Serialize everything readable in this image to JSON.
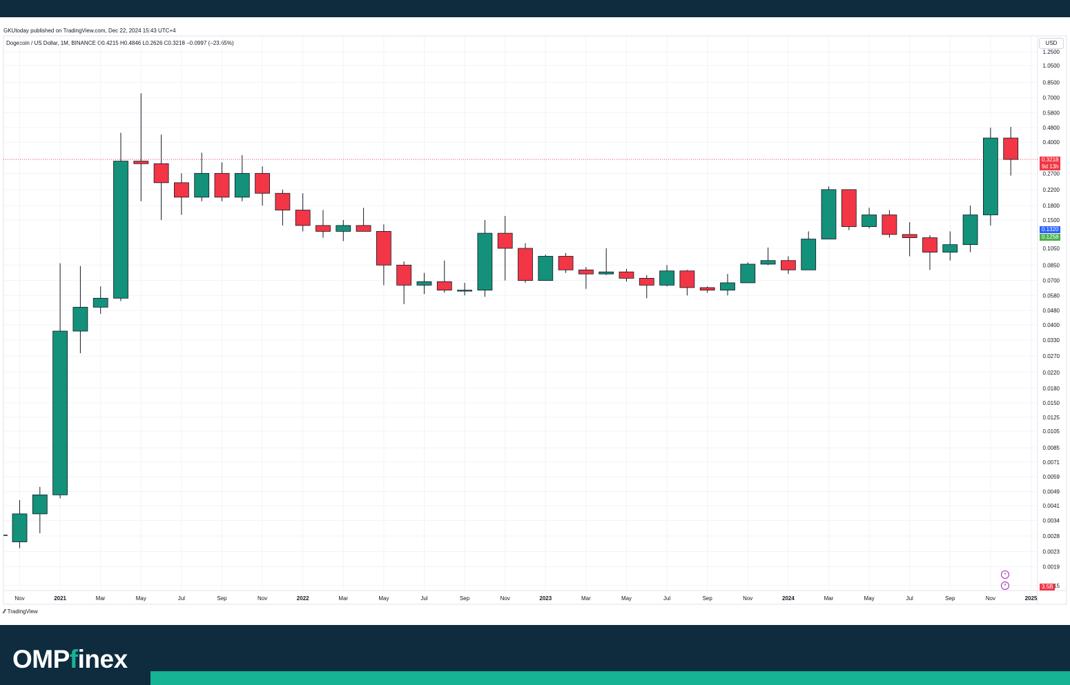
{
  "header": {
    "published": "GKUtoday published on TradingView.com, Dec 22, 2024 15:43 UTC+4",
    "symbol": "Dogecoin / US Dollar, 1M, BINANCE",
    "open": "O0.4215",
    "high": "H0.4846",
    "low": "L0.2626",
    "close": "C0.3218",
    "change": "−0.0997 (−23.65%)"
  },
  "currency_button": "USD",
  "footer": {
    "tradingview": "TradingView",
    "brand_main": "OMP",
    "brand_dot": "f",
    "brand_tail": "inex"
  },
  "price_tags": {
    "last_price": "0.3218",
    "countdown": "9d 13h",
    "blue_level": "0.1320",
    "green_level": "0.1258",
    "volume": "3.5B"
  },
  "colors": {
    "up": "#13917a",
    "down": "#f23645",
    "blue_tag": "#2962ff",
    "green_tag": "#4caf50",
    "bg_dark": "#0f2b3e",
    "accent": "#16b394"
  },
  "chart_data": {
    "type": "candlestick",
    "title": "Dogecoin / US Dollar, 1M, BINANCE",
    "y_scale": "log",
    "y_ticks": [
      "1.2500",
      "1.0500",
      "0.8500",
      "0.7000",
      "0.5800",
      "0.4800",
      "0.4000",
      "0.2700",
      "0.2200",
      "0.1800",
      "0.1500",
      "0.1050",
      "0.0850",
      "0.0700",
      "0.0580",
      "0.0480",
      "0.0400",
      "0.0330",
      "0.0270",
      "0.0220",
      "0.0180",
      "0.0150",
      "0.0125",
      "0.0105",
      "0.0085",
      "0.0071",
      "0.0059",
      "0.0049",
      "0.0041",
      "0.0034",
      "0.0028",
      "0.0023",
      "0.0019",
      "0.0015"
    ],
    "x_ticks": [
      "Nov",
      "2021",
      "Mar",
      "May",
      "Jul",
      "Sep",
      "Nov",
      "2022",
      "Mar",
      "May",
      "Jul",
      "Sep",
      "Nov",
      "2023",
      "Mar",
      "May",
      "Jul",
      "Sep",
      "Nov",
      "2024",
      "Mar",
      "May",
      "Jul",
      "Sep",
      "Nov",
      "2025"
    ],
    "candles": [
      {
        "date": "2020-11",
        "o": 0.0026,
        "h": 0.0044,
        "l": 0.0024,
        "c": 0.0037
      },
      {
        "date": "2020-12",
        "o": 0.0037,
        "h": 0.0052,
        "l": 0.0029,
        "c": 0.0047
      },
      {
        "date": "2021-01",
        "o": 0.0047,
        "h": 0.087,
        "l": 0.0045,
        "c": 0.037
      },
      {
        "date": "2021-02",
        "o": 0.037,
        "h": 0.084,
        "l": 0.028,
        "c": 0.05
      },
      {
        "date": "2021-03",
        "o": 0.05,
        "h": 0.065,
        "l": 0.046,
        "c": 0.056
      },
      {
        "date": "2021-04",
        "o": 0.056,
        "h": 0.45,
        "l": 0.054,
        "c": 0.315
      },
      {
        "date": "2021-05",
        "o": 0.315,
        "h": 0.74,
        "l": 0.19,
        "c": 0.305
      },
      {
        "date": "2021-06",
        "o": 0.305,
        "h": 0.44,
        "l": 0.15,
        "c": 0.24
      },
      {
        "date": "2021-07",
        "o": 0.24,
        "h": 0.27,
        "l": 0.16,
        "c": 0.2
      },
      {
        "date": "2021-08",
        "o": 0.2,
        "h": 0.35,
        "l": 0.19,
        "c": 0.27
      },
      {
        "date": "2021-09",
        "o": 0.27,
        "h": 0.31,
        "l": 0.19,
        "c": 0.2
      },
      {
        "date": "2021-10",
        "o": 0.2,
        "h": 0.34,
        "l": 0.19,
        "c": 0.27
      },
      {
        "date": "2021-11",
        "o": 0.27,
        "h": 0.295,
        "l": 0.18,
        "c": 0.21
      },
      {
        "date": "2021-12",
        "o": 0.21,
        "h": 0.22,
        "l": 0.14,
        "c": 0.17
      },
      {
        "date": "2022-01",
        "o": 0.17,
        "h": 0.21,
        "l": 0.13,
        "c": 0.14
      },
      {
        "date": "2022-02",
        "o": 0.14,
        "h": 0.17,
        "l": 0.12,
        "c": 0.13
      },
      {
        "date": "2022-03",
        "o": 0.13,
        "h": 0.15,
        "l": 0.115,
        "c": 0.14
      },
      {
        "date": "2022-04",
        "o": 0.14,
        "h": 0.175,
        "l": 0.13,
        "c": 0.13
      },
      {
        "date": "2022-05",
        "o": 0.13,
        "h": 0.142,
        "l": 0.066,
        "c": 0.085
      },
      {
        "date": "2022-06",
        "o": 0.085,
        "h": 0.089,
        "l": 0.052,
        "c": 0.066
      },
      {
        "date": "2022-07",
        "o": 0.066,
        "h": 0.077,
        "l": 0.059,
        "c": 0.069
      },
      {
        "date": "2022-08",
        "o": 0.069,
        "h": 0.09,
        "l": 0.06,
        "c": 0.062
      },
      {
        "date": "2022-09",
        "o": 0.062,
        "h": 0.068,
        "l": 0.058,
        "c": 0.062
      },
      {
        "date": "2022-10",
        "o": 0.062,
        "h": 0.15,
        "l": 0.057,
        "c": 0.127
      },
      {
        "date": "2022-11",
        "o": 0.127,
        "h": 0.158,
        "l": 0.07,
        "c": 0.105
      },
      {
        "date": "2022-12",
        "o": 0.105,
        "h": 0.112,
        "l": 0.068,
        "c": 0.07
      },
      {
        "date": "2023-01",
        "o": 0.07,
        "h": 0.097,
        "l": 0.07,
        "c": 0.095
      },
      {
        "date": "2023-02",
        "o": 0.095,
        "h": 0.099,
        "l": 0.077,
        "c": 0.08
      },
      {
        "date": "2023-03",
        "o": 0.08,
        "h": 0.083,
        "l": 0.063,
        "c": 0.076
      },
      {
        "date": "2023-04",
        "o": 0.076,
        "h": 0.105,
        "l": 0.075,
        "c": 0.078
      },
      {
        "date": "2023-05",
        "o": 0.078,
        "h": 0.081,
        "l": 0.069,
        "c": 0.072
      },
      {
        "date": "2023-06",
        "o": 0.072,
        "h": 0.075,
        "l": 0.056,
        "c": 0.066
      },
      {
        "date": "2023-07",
        "o": 0.066,
        "h": 0.085,
        "l": 0.065,
        "c": 0.079
      },
      {
        "date": "2023-08",
        "o": 0.079,
        "h": 0.08,
        "l": 0.058,
        "c": 0.064
      },
      {
        "date": "2023-09",
        "o": 0.064,
        "h": 0.065,
        "l": 0.06,
        "c": 0.062
      },
      {
        "date": "2023-10",
        "o": 0.062,
        "h": 0.076,
        "l": 0.058,
        "c": 0.068
      },
      {
        "date": "2023-11",
        "o": 0.068,
        "h": 0.088,
        "l": 0.068,
        "c": 0.086
      },
      {
        "date": "2023-12",
        "o": 0.086,
        "h": 0.106,
        "l": 0.085,
        "c": 0.09
      },
      {
        "date": "2024-01",
        "o": 0.09,
        "h": 0.095,
        "l": 0.076,
        "c": 0.08
      },
      {
        "date": "2024-02",
        "o": 0.08,
        "h": 0.13,
        "l": 0.08,
        "c": 0.118
      },
      {
        "date": "2024-03",
        "o": 0.118,
        "h": 0.229,
        "l": 0.118,
        "c": 0.22
      },
      {
        "date": "2024-04",
        "o": 0.22,
        "h": 0.22,
        "l": 0.132,
        "c": 0.138
      },
      {
        "date": "2024-05",
        "o": 0.138,
        "h": 0.175,
        "l": 0.135,
        "c": 0.16
      },
      {
        "date": "2024-06",
        "o": 0.16,
        "h": 0.17,
        "l": 0.12,
        "c": 0.125
      },
      {
        "date": "2024-07",
        "o": 0.125,
        "h": 0.146,
        "l": 0.095,
        "c": 0.12
      },
      {
        "date": "2024-08",
        "o": 0.12,
        "h": 0.124,
        "l": 0.08,
        "c": 0.1
      },
      {
        "date": "2024-09",
        "o": 0.1,
        "h": 0.13,
        "l": 0.09,
        "c": 0.11
      },
      {
        "date": "2024-10",
        "o": 0.11,
        "h": 0.18,
        "l": 0.1,
        "c": 0.16
      },
      {
        "date": "2024-11",
        "o": 0.16,
        "h": 0.48,
        "l": 0.14,
        "c": 0.4215
      },
      {
        "date": "2024-12",
        "o": 0.4215,
        "h": 0.4846,
        "l": 0.2626,
        "c": 0.3218
      }
    ],
    "last_price": 0.3218,
    "grid": true,
    "legend": "none"
  }
}
